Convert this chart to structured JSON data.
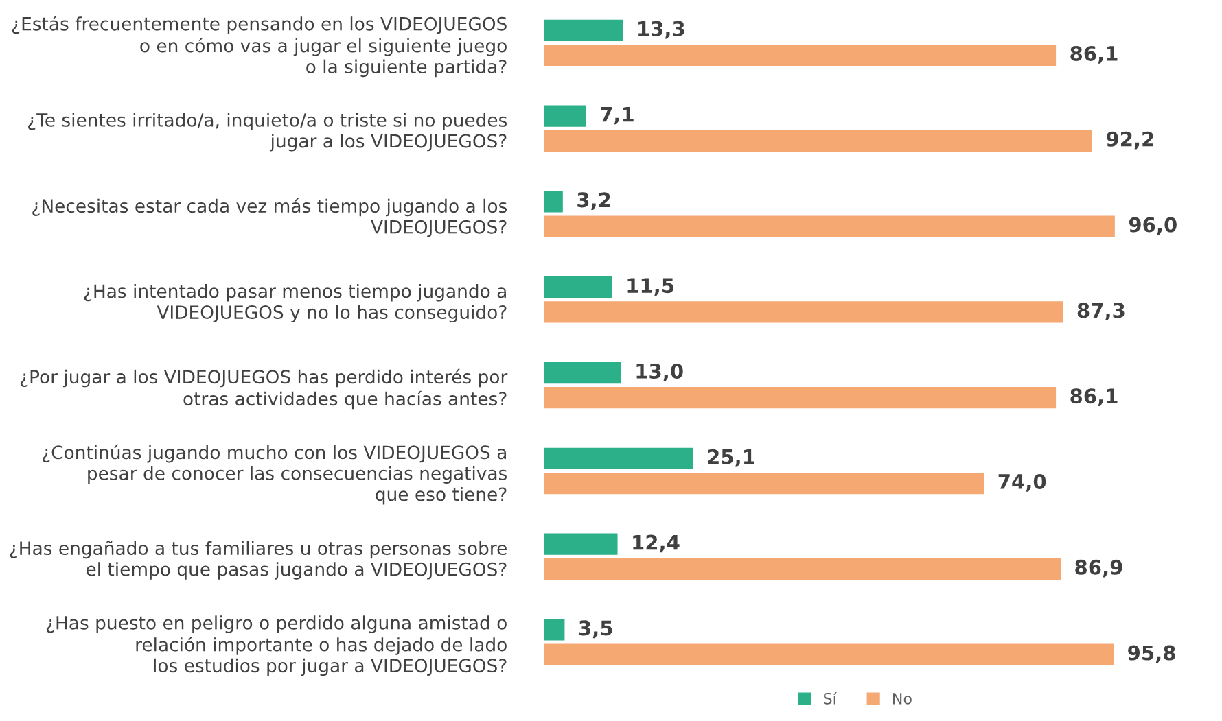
{
  "chart_data": {
    "type": "bar",
    "orientation": "horizontal",
    "legend": "bottom",
    "tick_labels": "y",
    "categories": [
      "¿Estás frecuentemente pensando en los VIDEOJUEGOS\no en cómo vas a jugar el siguiente juego\no la siguiente partida?",
      "¿Te sientes irritado/a, inquieto/a o triste si no puedes\njugar a los VIDEOJUEGOS?",
      "¿Necesitas estar cada vez más tiempo jugando a los\nVIDEOJUEGOS?",
      "¿Has intentado pasar menos tiempo jugando a\nVIDEOJUEGOS y no lo has conseguido?",
      "¿Por jugar a los VIDEOJUEGOS has perdido interés por\notras actividades que hacías antes?",
      "¿Continúas jugando mucho con los VIDEOJUEGOS a\npesar de conocer las consecuencias negativas\nque eso tiene?",
      "¿Has engañado a tus familiares u otras personas sobre\nel tiempo que pasas jugando a VIDEOJUEGOS?",
      "¿Has puesto en peligro o perdido alguna amistad o\nrelación importante o has dejado de lado\nlos estudios por jugar a VIDEOJUEGOS?"
    ],
    "series": [
      {
        "name": "Sí",
        "color": "#2bb08a",
        "values": [
          13.3,
          7.1,
          3.2,
          11.5,
          13.0,
          25.1,
          12.4,
          3.5
        ],
        "value_labels": [
          "13,3",
          "7,1",
          "3,2",
          "11,5",
          "13,0",
          "25,1",
          "12,4",
          "3,5"
        ]
      },
      {
        "name": "No",
        "color": "#f5a872",
        "values": [
          86.1,
          92.2,
          96.0,
          87.3,
          86.1,
          74.0,
          86.9,
          95.8
        ],
        "value_labels": [
          "86,1",
          "92,2",
          "96,0",
          "87,3",
          "86,1",
          "74,0",
          "86,9",
          "95,8"
        ]
      }
    ]
  }
}
